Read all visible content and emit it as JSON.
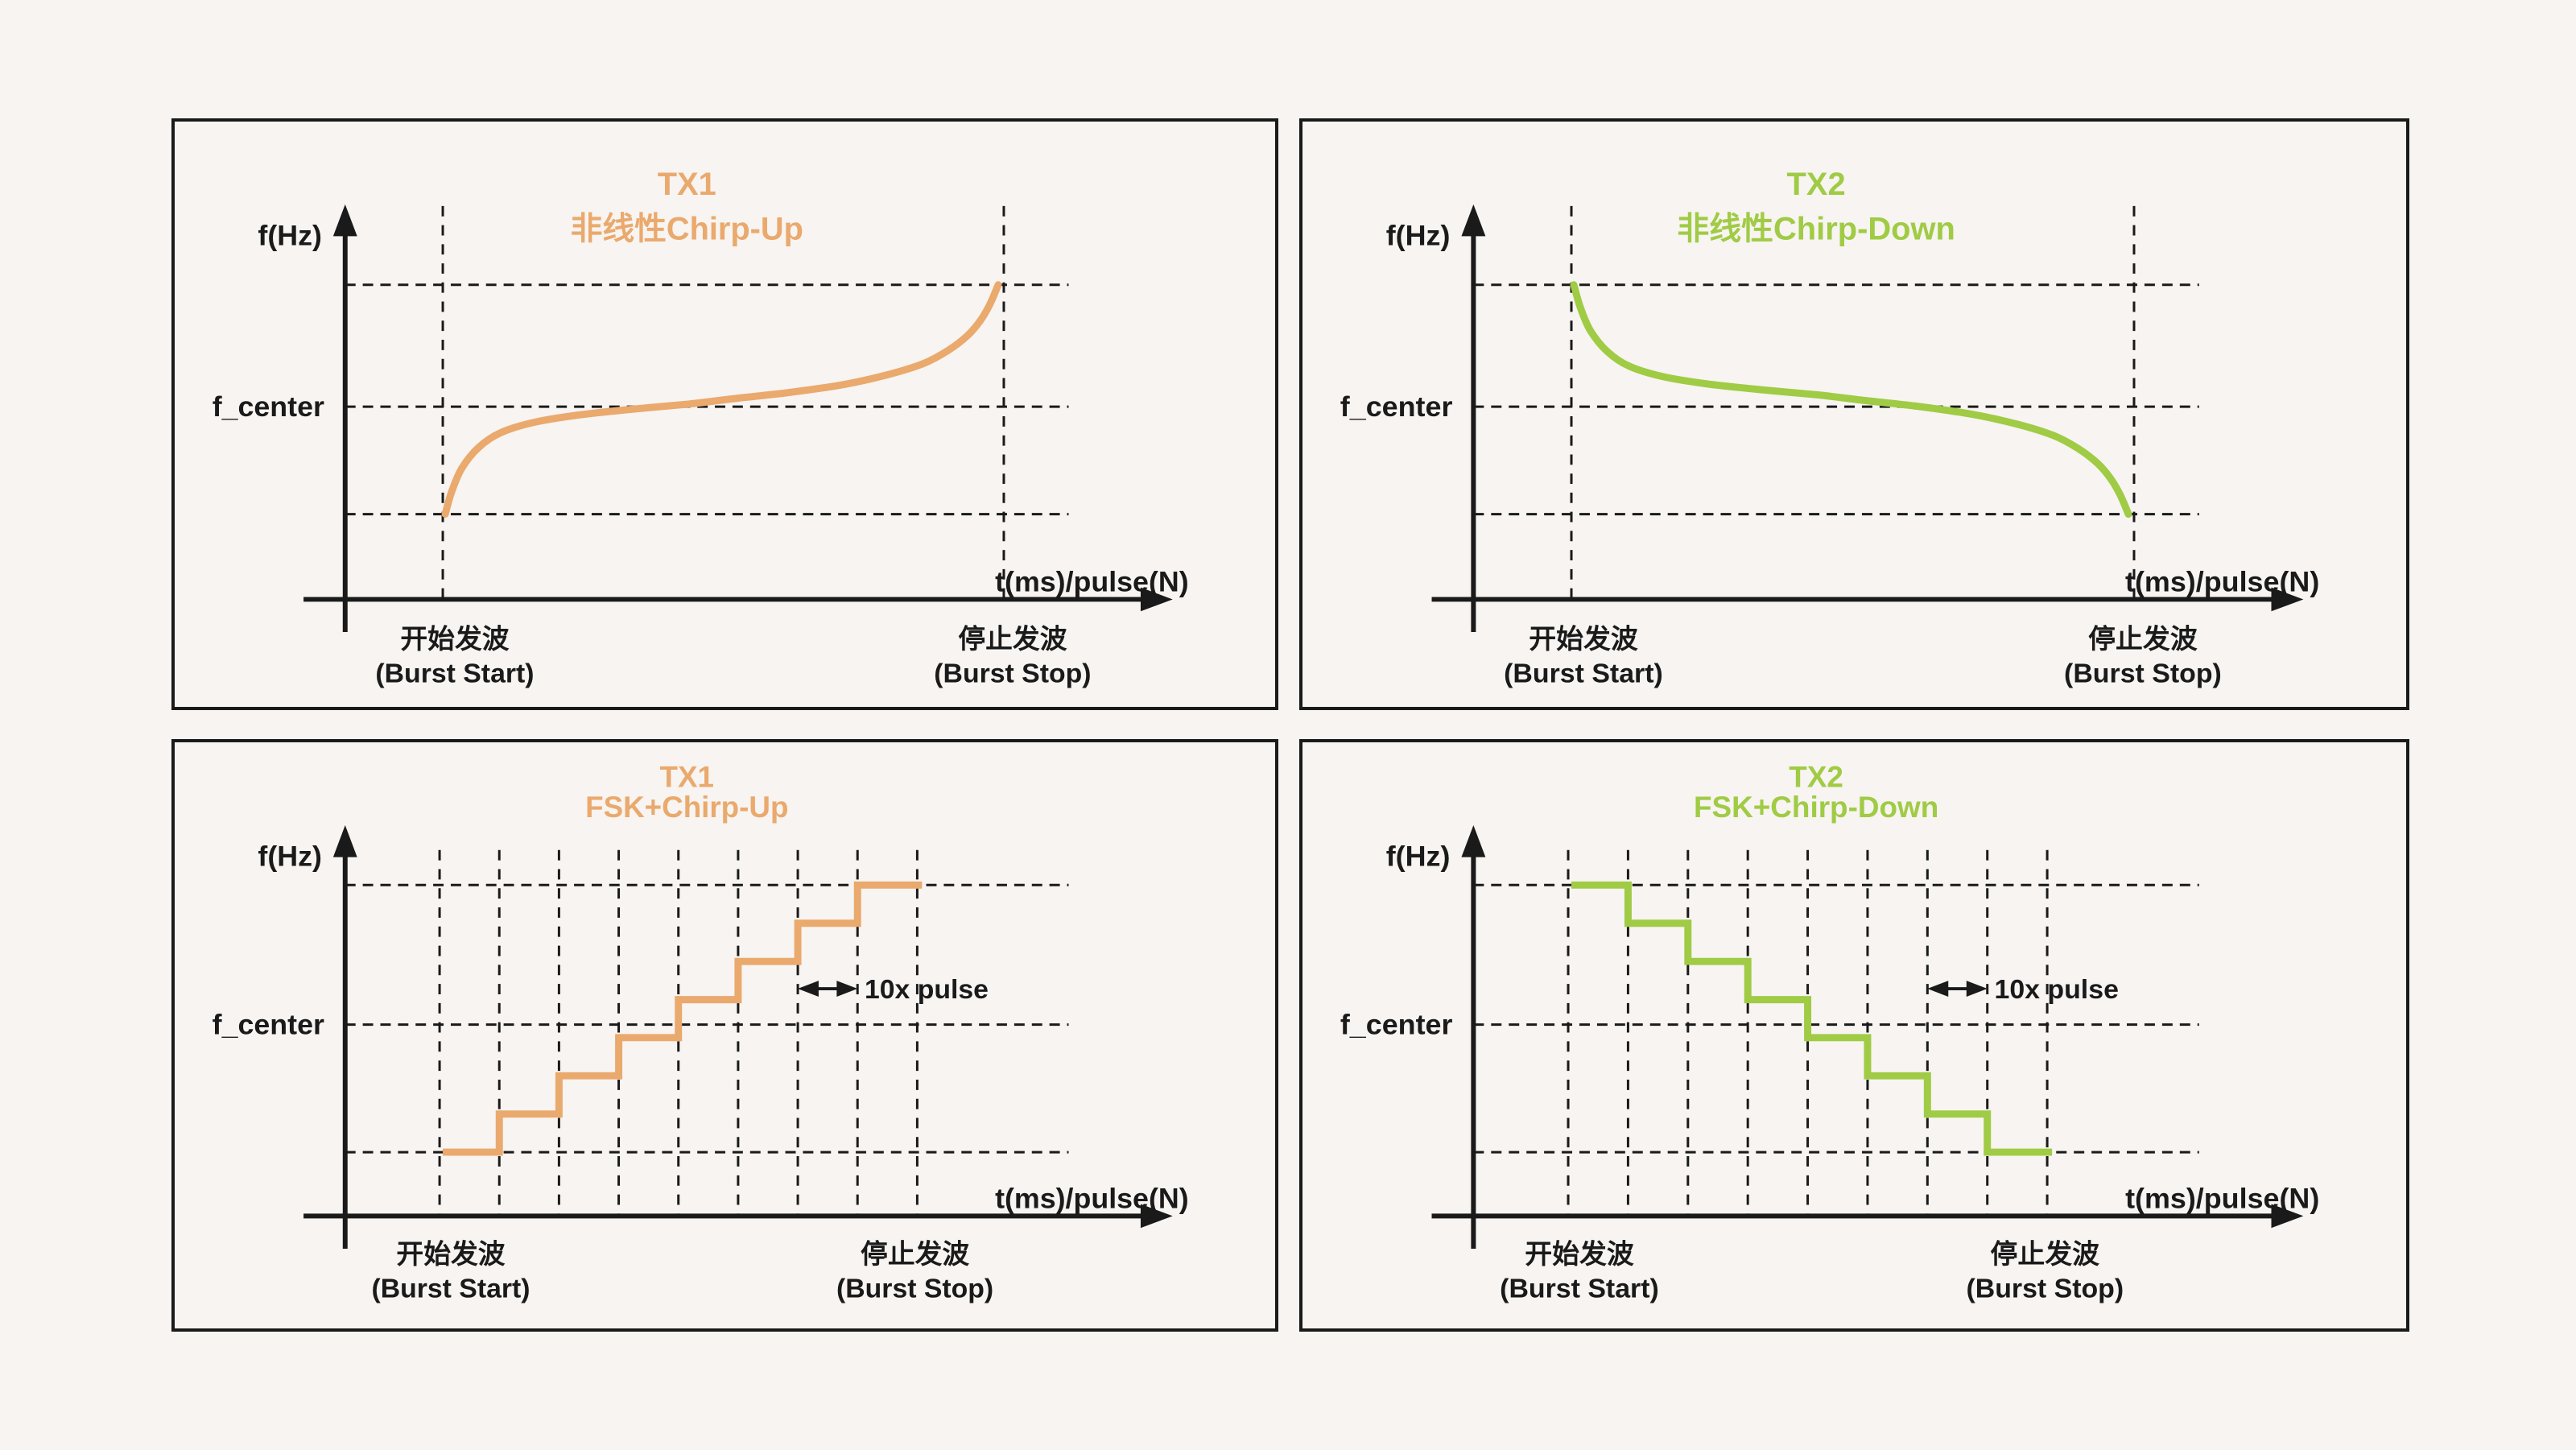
{
  "colors": {
    "background": "#F7F4F1",
    "ink": "#1A1A1A",
    "tx1_orange": "#EAA96D",
    "tx2_green": "#A0CB45"
  },
  "panels": [
    {
      "type": "top",
      "accent_key": "tx1_orange",
      "title_line1": "TX1",
      "title_line2": "非线性Chirp-Up",
      "y_axis_label": "f(Hz)",
      "f_center_label": "f_center",
      "x_axis_label": "t(ms)/pulse(N)",
      "burst_start_zh": "开始发波",
      "burst_start_en": "(Burst Start)",
      "burst_stop_zh": "停止发波",
      "burst_stop_en": "(Burst Stop)"
    },
    {
      "type": "top",
      "accent_key": "tx2_green",
      "title_line1": "TX2",
      "title_line2": "非线性Chirp-Down",
      "y_axis_label": "f(Hz)",
      "f_center_label": "f_center",
      "x_axis_label": "t(ms)/pulse(N)",
      "burst_start_zh": "开始发波",
      "burst_start_en": "(Burst Start)",
      "burst_stop_zh": "停止发波",
      "burst_stop_en": "(Burst Stop)"
    },
    {
      "type": "bottom",
      "accent_key": "tx1_orange",
      "title_line1": "TX1",
      "title_line2": "FSK+Chirp-Up",
      "y_axis_label": "f(Hz)",
      "f_center_label": "f_center",
      "x_axis_label": "t(ms)/pulse(N)",
      "burst_start_zh": "开始发波",
      "burst_start_en": "(Burst Start)",
      "burst_stop_zh": "停止发波",
      "burst_stop_en": "(Burst Stop)",
      "pulse_annotation": "10x pulse"
    },
    {
      "type": "bottom",
      "accent_key": "tx2_green",
      "title_line1": "TX2",
      "title_line2": "FSK+Chirp-Down",
      "y_axis_label": "f(Hz)",
      "f_center_label": "f_center",
      "x_axis_label": "t(ms)/pulse(N)",
      "burst_start_zh": "开始发波",
      "burst_start_en": "(Burst Start)",
      "burst_stop_zh": "停止发波",
      "burst_stop_en": "(Burst Stop)",
      "pulse_annotation": "10x pulse"
    }
  ],
  "chart_data": [
    {
      "panel": "TX1",
      "type": "line",
      "waveform": "nonlinear-chirp-up",
      "title": "TX1 非线性Chirp-Up",
      "xlabel": "t(ms)/pulse(N)",
      "ylabel": "f(Hz)",
      "x_start_label": "开始发波 (Burst Start)",
      "x_end_label": "停止发波 (Burst Stop)",
      "y_center_label": "f_center",
      "grid": "dashed",
      "normalized_points": [
        [
          0,
          0
        ],
        [
          0.012,
          0.1
        ],
        [
          0.03,
          0.2
        ],
        [
          0.06,
          0.29
        ],
        [
          0.1,
          0.355
        ],
        [
          0.16,
          0.4
        ],
        [
          0.24,
          0.432
        ],
        [
          0.34,
          0.458
        ],
        [
          0.44,
          0.48
        ],
        [
          0.52,
          0.503
        ],
        [
          0.62,
          0.53
        ],
        [
          0.72,
          0.565
        ],
        [
          0.8,
          0.608
        ],
        [
          0.865,
          0.657
        ],
        [
          0.91,
          0.715
        ],
        [
          0.945,
          0.78
        ],
        [
          0.968,
          0.845
        ],
        [
          0.985,
          0.915
        ],
        [
          1,
          1
        ]
      ]
    },
    {
      "panel": "TX2",
      "type": "line",
      "waveform": "nonlinear-chirp-down",
      "title": "TX2 非线性Chirp-Down",
      "xlabel": "t(ms)/pulse(N)",
      "ylabel": "f(Hz)",
      "x_start_label": "开始发波 (Burst Start)",
      "x_end_label": "停止发波 (Burst Stop)",
      "y_center_label": "f_center",
      "grid": "dashed",
      "normalized_points": [
        [
          0,
          1
        ],
        [
          0.012,
          0.9
        ],
        [
          0.03,
          0.8
        ],
        [
          0.06,
          0.71
        ],
        [
          0.1,
          0.645
        ],
        [
          0.16,
          0.6
        ],
        [
          0.24,
          0.568
        ],
        [
          0.34,
          0.542
        ],
        [
          0.44,
          0.52
        ],
        [
          0.52,
          0.497
        ],
        [
          0.62,
          0.47
        ],
        [
          0.72,
          0.435
        ],
        [
          0.8,
          0.392
        ],
        [
          0.865,
          0.343
        ],
        [
          0.91,
          0.285
        ],
        [
          0.945,
          0.22
        ],
        [
          0.968,
          0.155
        ],
        [
          0.985,
          0.085
        ],
        [
          1,
          0
        ]
      ]
    },
    {
      "panel": "TX1",
      "type": "staircase",
      "waveform": "fsk-chirp-up",
      "direction": "up",
      "title": "TX1 FSK+Chirp-Up",
      "xlabel": "t(ms)/pulse(N)",
      "ylabel": "f(Hz)",
      "x_start_label": "开始发波 (Burst Start)",
      "x_end_label": "停止发波 (Burst Stop)",
      "y_center_label": "f_center",
      "grid": "dashed",
      "step_count": 8,
      "step_width_label": "10x pulse",
      "normalized_levels": [
        0,
        0.143,
        0.286,
        0.429,
        0.571,
        0.714,
        0.857,
        1
      ]
    },
    {
      "panel": "TX2",
      "type": "staircase",
      "waveform": "fsk-chirp-down",
      "direction": "down",
      "title": "TX2 FSK+Chirp-Down",
      "xlabel": "t(ms)/pulse(N)",
      "ylabel": "f(Hz)",
      "x_start_label": "开始发波 (Burst Start)",
      "x_end_label": "停止发波 (Burst Stop)",
      "y_center_label": "f_center",
      "grid": "dashed",
      "step_count": 8,
      "step_width_label": "10x pulse",
      "normalized_levels": [
        1,
        0.857,
        0.714,
        0.571,
        0.429,
        0.286,
        0.143,
        0
      ]
    }
  ]
}
